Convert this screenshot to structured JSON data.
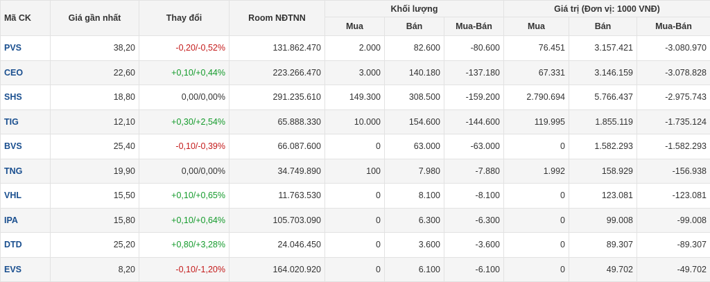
{
  "headers": {
    "symbol": "Mã CK",
    "last_price": "Giá gần nhất",
    "change": "Thay đổi",
    "room": "Room NĐTNN",
    "volume_group": "Khối lượng",
    "value_group": "Giá trị (Đơn vị: 1000 VNĐ)",
    "buy": "Mua",
    "sell": "Bán",
    "net": "Mua-Bán"
  },
  "rows": [
    {
      "symbol": "PVS",
      "price": "38,20",
      "change": "-0,20/-0,52%",
      "trend": "down",
      "room": "131.862.470",
      "vol_buy": "2.000",
      "vol_sell": "82.600",
      "vol_net": "-80.600",
      "val_buy": "76.451",
      "val_sell": "3.157.421",
      "val_net": "-3.080.970"
    },
    {
      "symbol": "CEO",
      "price": "22,60",
      "change": "+0,10/+0,44%",
      "trend": "up",
      "room": "223.266.470",
      "vol_buy": "3.000",
      "vol_sell": "140.180",
      "vol_net": "-137.180",
      "val_buy": "67.331",
      "val_sell": "3.146.159",
      "val_net": "-3.078.828"
    },
    {
      "symbol": "SHS",
      "price": "18,80",
      "change": "0,00/0,00%",
      "trend": "flat",
      "room": "291.235.610",
      "vol_buy": "149.300",
      "vol_sell": "308.500",
      "vol_net": "-159.200",
      "val_buy": "2.790.694",
      "val_sell": "5.766.437",
      "val_net": "-2.975.743"
    },
    {
      "symbol": "TIG",
      "price": "12,10",
      "change": "+0,30/+2,54%",
      "trend": "up",
      "room": "65.888.330",
      "vol_buy": "10.000",
      "vol_sell": "154.600",
      "vol_net": "-144.600",
      "val_buy": "119.995",
      "val_sell": "1.855.119",
      "val_net": "-1.735.124"
    },
    {
      "symbol": "BVS",
      "price": "25,40",
      "change": "-0,10/-0,39%",
      "trend": "down",
      "room": "66.087.600",
      "vol_buy": "0",
      "vol_sell": "63.000",
      "vol_net": "-63.000",
      "val_buy": "0",
      "val_sell": "1.582.293",
      "val_net": "-1.582.293"
    },
    {
      "symbol": "TNG",
      "price": "19,90",
      "change": "0,00/0,00%",
      "trend": "flat",
      "room": "34.749.890",
      "vol_buy": "100",
      "vol_sell": "7.980",
      "vol_net": "-7.880",
      "val_buy": "1.992",
      "val_sell": "158.929",
      "val_net": "-156.938"
    },
    {
      "symbol": "VHL",
      "price": "15,50",
      "change": "+0,10/+0,65%",
      "trend": "up",
      "room": "11.763.530",
      "vol_buy": "0",
      "vol_sell": "8.100",
      "vol_net": "-8.100",
      "val_buy": "0",
      "val_sell": "123.081",
      "val_net": "-123.081"
    },
    {
      "symbol": "IPA",
      "price": "15,80",
      "change": "+0,10/+0,64%",
      "trend": "up",
      "room": "105.703.090",
      "vol_buy": "0",
      "vol_sell": "6.300",
      "vol_net": "-6.300",
      "val_buy": "0",
      "val_sell": "99.008",
      "val_net": "-99.008"
    },
    {
      "symbol": "DTD",
      "price": "25,20",
      "change": "+0,80/+3,28%",
      "trend": "up",
      "room": "24.046.450",
      "vol_buy": "0",
      "vol_sell": "3.600",
      "vol_net": "-3.600",
      "val_buy": "0",
      "val_sell": "89.307",
      "val_net": "-89.307"
    },
    {
      "symbol": "EVS",
      "price": "8,20",
      "change": "-0,10/-1,20%",
      "trend": "down",
      "room": "164.020.920",
      "vol_buy": "0",
      "vol_sell": "6.100",
      "vol_net": "-6.100",
      "val_buy": "0",
      "val_sell": "49.702",
      "val_net": "-49.702"
    }
  ],
  "colors": {
    "up": "#159b2c",
    "down": "#c41a1a",
    "symbol": "#1a4f8f"
  }
}
